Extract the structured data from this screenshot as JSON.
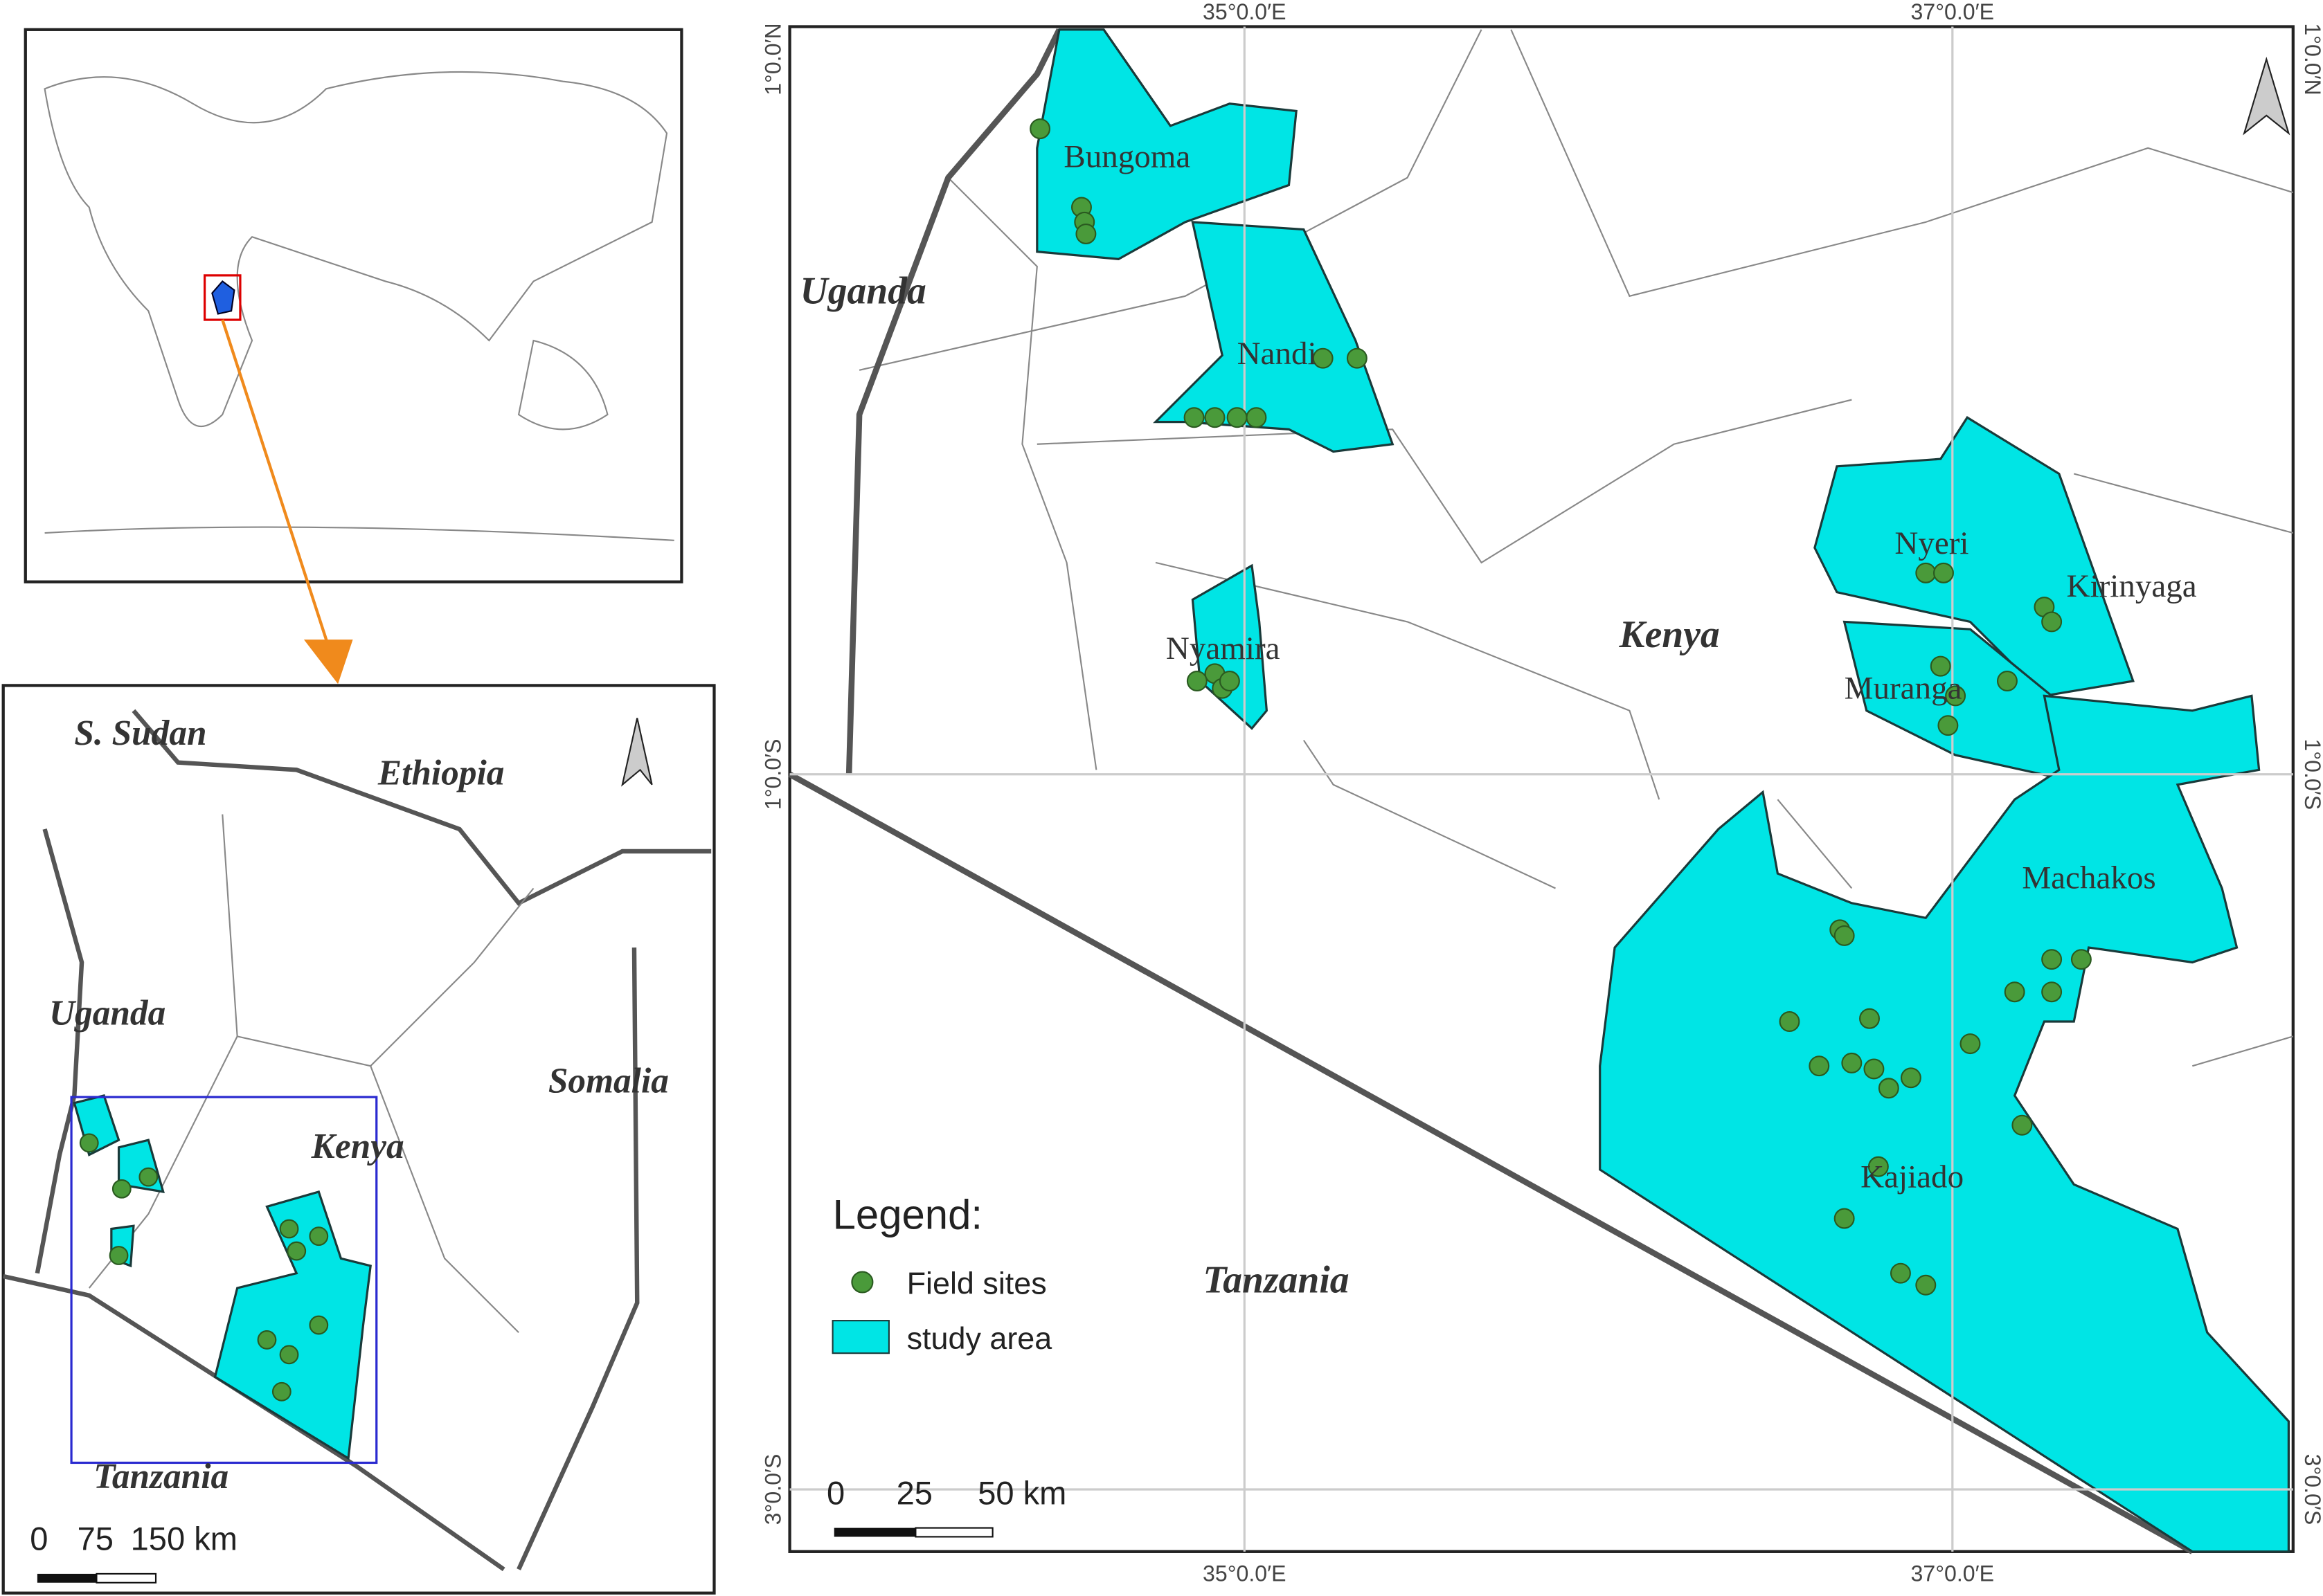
{
  "kenya_inset": {
    "labels": [
      "S. Sudan",
      "Ethiopia",
      "Uganda",
      "Somalia",
      "Kenya",
      "Tanzania"
    ],
    "scale_bar": [
      "0",
      "75",
      "150 km"
    ]
  },
  "main_map": {
    "countries": [
      "Uganda",
      "Kenya",
      "Tanzania"
    ],
    "counties": [
      "Bungoma",
      "Nandi",
      "Nyamira",
      "Nyeri",
      "Kirinyaga",
      "Muranga",
      "Machakos",
      "Kajiado"
    ],
    "graticule": {
      "top": [
        "35°0.0′E",
        "37°0.0′E"
      ],
      "bottom": [
        "35°0.0′E",
        "37°0.0′E"
      ],
      "left": [
        "1°0.0′N",
        "1°0.0′S",
        "3°0.0′S"
      ],
      "right": [
        "1°0.0′N",
        "1°0.0′S",
        "3°0.0′S"
      ]
    },
    "legend": {
      "title": "Legend:",
      "items": [
        "Field sites",
        "study area"
      ]
    },
    "scale_bar": [
      "0",
      "25",
      "50 km"
    ]
  }
}
